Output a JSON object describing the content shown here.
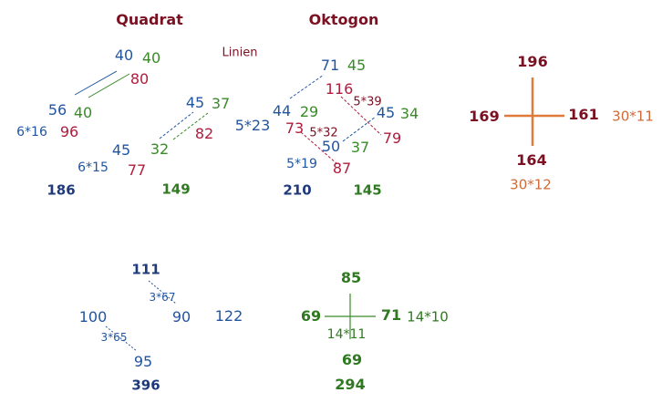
{
  "colors": {
    "blue": "#2255a0",
    "green": "#3a8a2a",
    "red": "#b01c3c",
    "maroon": "#7a1022",
    "orange": "#e07a3a"
  },
  "headings": {
    "quadrat": "Quadrat",
    "oktogon": "Oktogon",
    "linien": "Linien"
  },
  "quadrat": {
    "top_blue": "40",
    "top_green": "40",
    "top_red": "80",
    "mid_blue": "56",
    "mid_green": "40",
    "mid_red": "96",
    "mid_mult": "6*16",
    "right_blue": "45",
    "right_green": "37",
    "right_red": "82",
    "low_blue": "45",
    "low_green": "32",
    "low_red": "77",
    "low_mult": "6*15",
    "sum_blue": "186",
    "sum_green": "149"
  },
  "oktogon": {
    "top_blue": "71",
    "top_green": "45",
    "top_red": "116",
    "top_mult": "5*39",
    "left_blue": "44",
    "left_green": "29",
    "left_red": "73",
    "left_mult": "5*23",
    "mid_mult": "5*32",
    "right_blue": "45",
    "right_green": "34",
    "right_red": "79",
    "low_blue": "50",
    "low_green": "37",
    "low_red": "87",
    "low_mult": "5*19",
    "sum_blue": "210",
    "sum_green": "145"
  },
  "cross_red": {
    "top": "196",
    "left": "169",
    "right": "161",
    "bottom": "164",
    "right_mult": "30*11",
    "bottom_mult": "30*12"
  },
  "blue_group": {
    "top": "111",
    "top_mult": "3*67",
    "right": "90",
    "left": "100",
    "left_mult": "3*65",
    "bottom": "95",
    "far_right": "122",
    "sum": "396"
  },
  "cross_green": {
    "top": "85",
    "left": "69",
    "right": "71",
    "right_mult": "14*10",
    "center_mult": "14*11",
    "bottom": "69",
    "sum": "294"
  }
}
